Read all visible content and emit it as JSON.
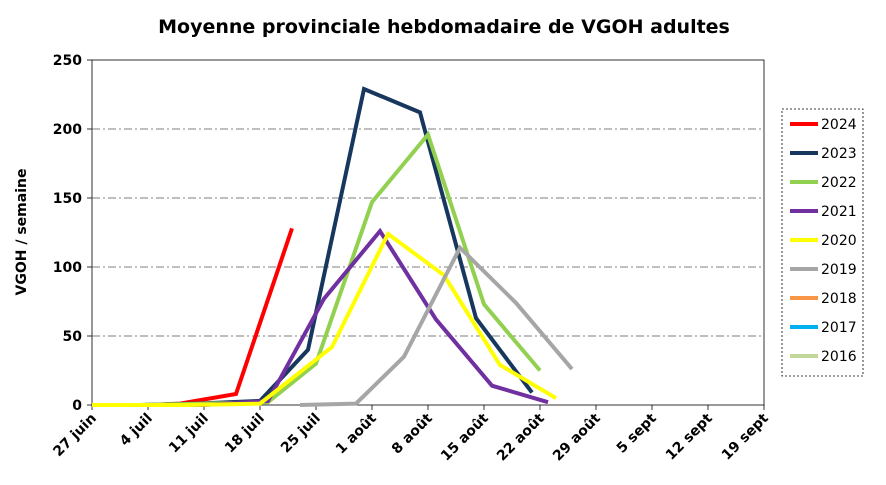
{
  "chart_data": {
    "type": "line",
    "title": "Moyenne provinciale hebdomadaire de VGOH adultes",
    "xlabel": "",
    "ylabel": "VGOH / semaine",
    "ylim": [
      0,
      250
    ],
    "yticks": [
      0,
      50,
      100,
      150,
      200,
      250
    ],
    "xticks": [
      "27 juin",
      "4 juil",
      "11 juil",
      "18 juil",
      "25 juil",
      "1 août",
      "8 août",
      "15 août",
      "22 août",
      "29 août",
      "5 sept",
      "12 sept",
      "19 sept"
    ],
    "x_unit": "days after 27 juin",
    "xlim": [
      0,
      84
    ],
    "grid": "horizontal dash-dot",
    "legend_position": "right",
    "series": [
      {
        "name": "2024",
        "color": "#ff0000",
        "points": [
          [
            0,
            0
          ],
          [
            7,
            0
          ],
          [
            11,
            1
          ],
          [
            18,
            8
          ],
          [
            25,
            128
          ]
        ]
      },
      {
        "name": "2023",
        "color": "#17375e",
        "points": [
          [
            6,
            0
          ],
          [
            13,
            1
          ],
          [
            21,
            3
          ],
          [
            27,
            40
          ],
          [
            34,
            229
          ],
          [
            41,
            212
          ],
          [
            48,
            63
          ],
          [
            55,
            9
          ]
        ]
      },
      {
        "name": "2022",
        "color": "#92d050",
        "points": [
          [
            6,
            0
          ],
          [
            14,
            1
          ],
          [
            22,
            2
          ],
          [
            28,
            30
          ],
          [
            35,
            147
          ],
          [
            42,
            196
          ],
          [
            49,
            73
          ],
          [
            56,
            25
          ]
        ]
      },
      {
        "name": "2021",
        "color": "#7030a0",
        "points": [
          [
            7,
            0
          ],
          [
            14,
            0
          ],
          [
            22,
            3
          ],
          [
            29,
            77
          ],
          [
            36,
            126
          ],
          [
            43,
            62
          ],
          [
            50,
            14
          ],
          [
            57,
            2
          ]
        ]
      },
      {
        "name": "2020",
        "color": "#ffff00",
        "points": [
          [
            0,
            0
          ],
          [
            4,
            0
          ],
          [
            12,
            0
          ],
          [
            21,
            1
          ],
          [
            30,
            42
          ],
          [
            37,
            124
          ],
          [
            44,
            94
          ],
          [
            51,
            29
          ],
          [
            58,
            5
          ]
        ]
      },
      {
        "name": "2019",
        "color": "#a6a6a6",
        "points": [
          [
            26,
            0
          ],
          [
            33,
            1
          ],
          [
            39,
            35
          ],
          [
            46,
            114
          ],
          [
            53,
            74
          ],
          [
            60,
            26
          ]
        ]
      },
      {
        "name": "2018",
        "color": "#f79646",
        "points": []
      },
      {
        "name": "2017",
        "color": "#00b0f0",
        "points": []
      },
      {
        "name": "2016",
        "color": "#c4d79b",
        "points": []
      }
    ]
  }
}
